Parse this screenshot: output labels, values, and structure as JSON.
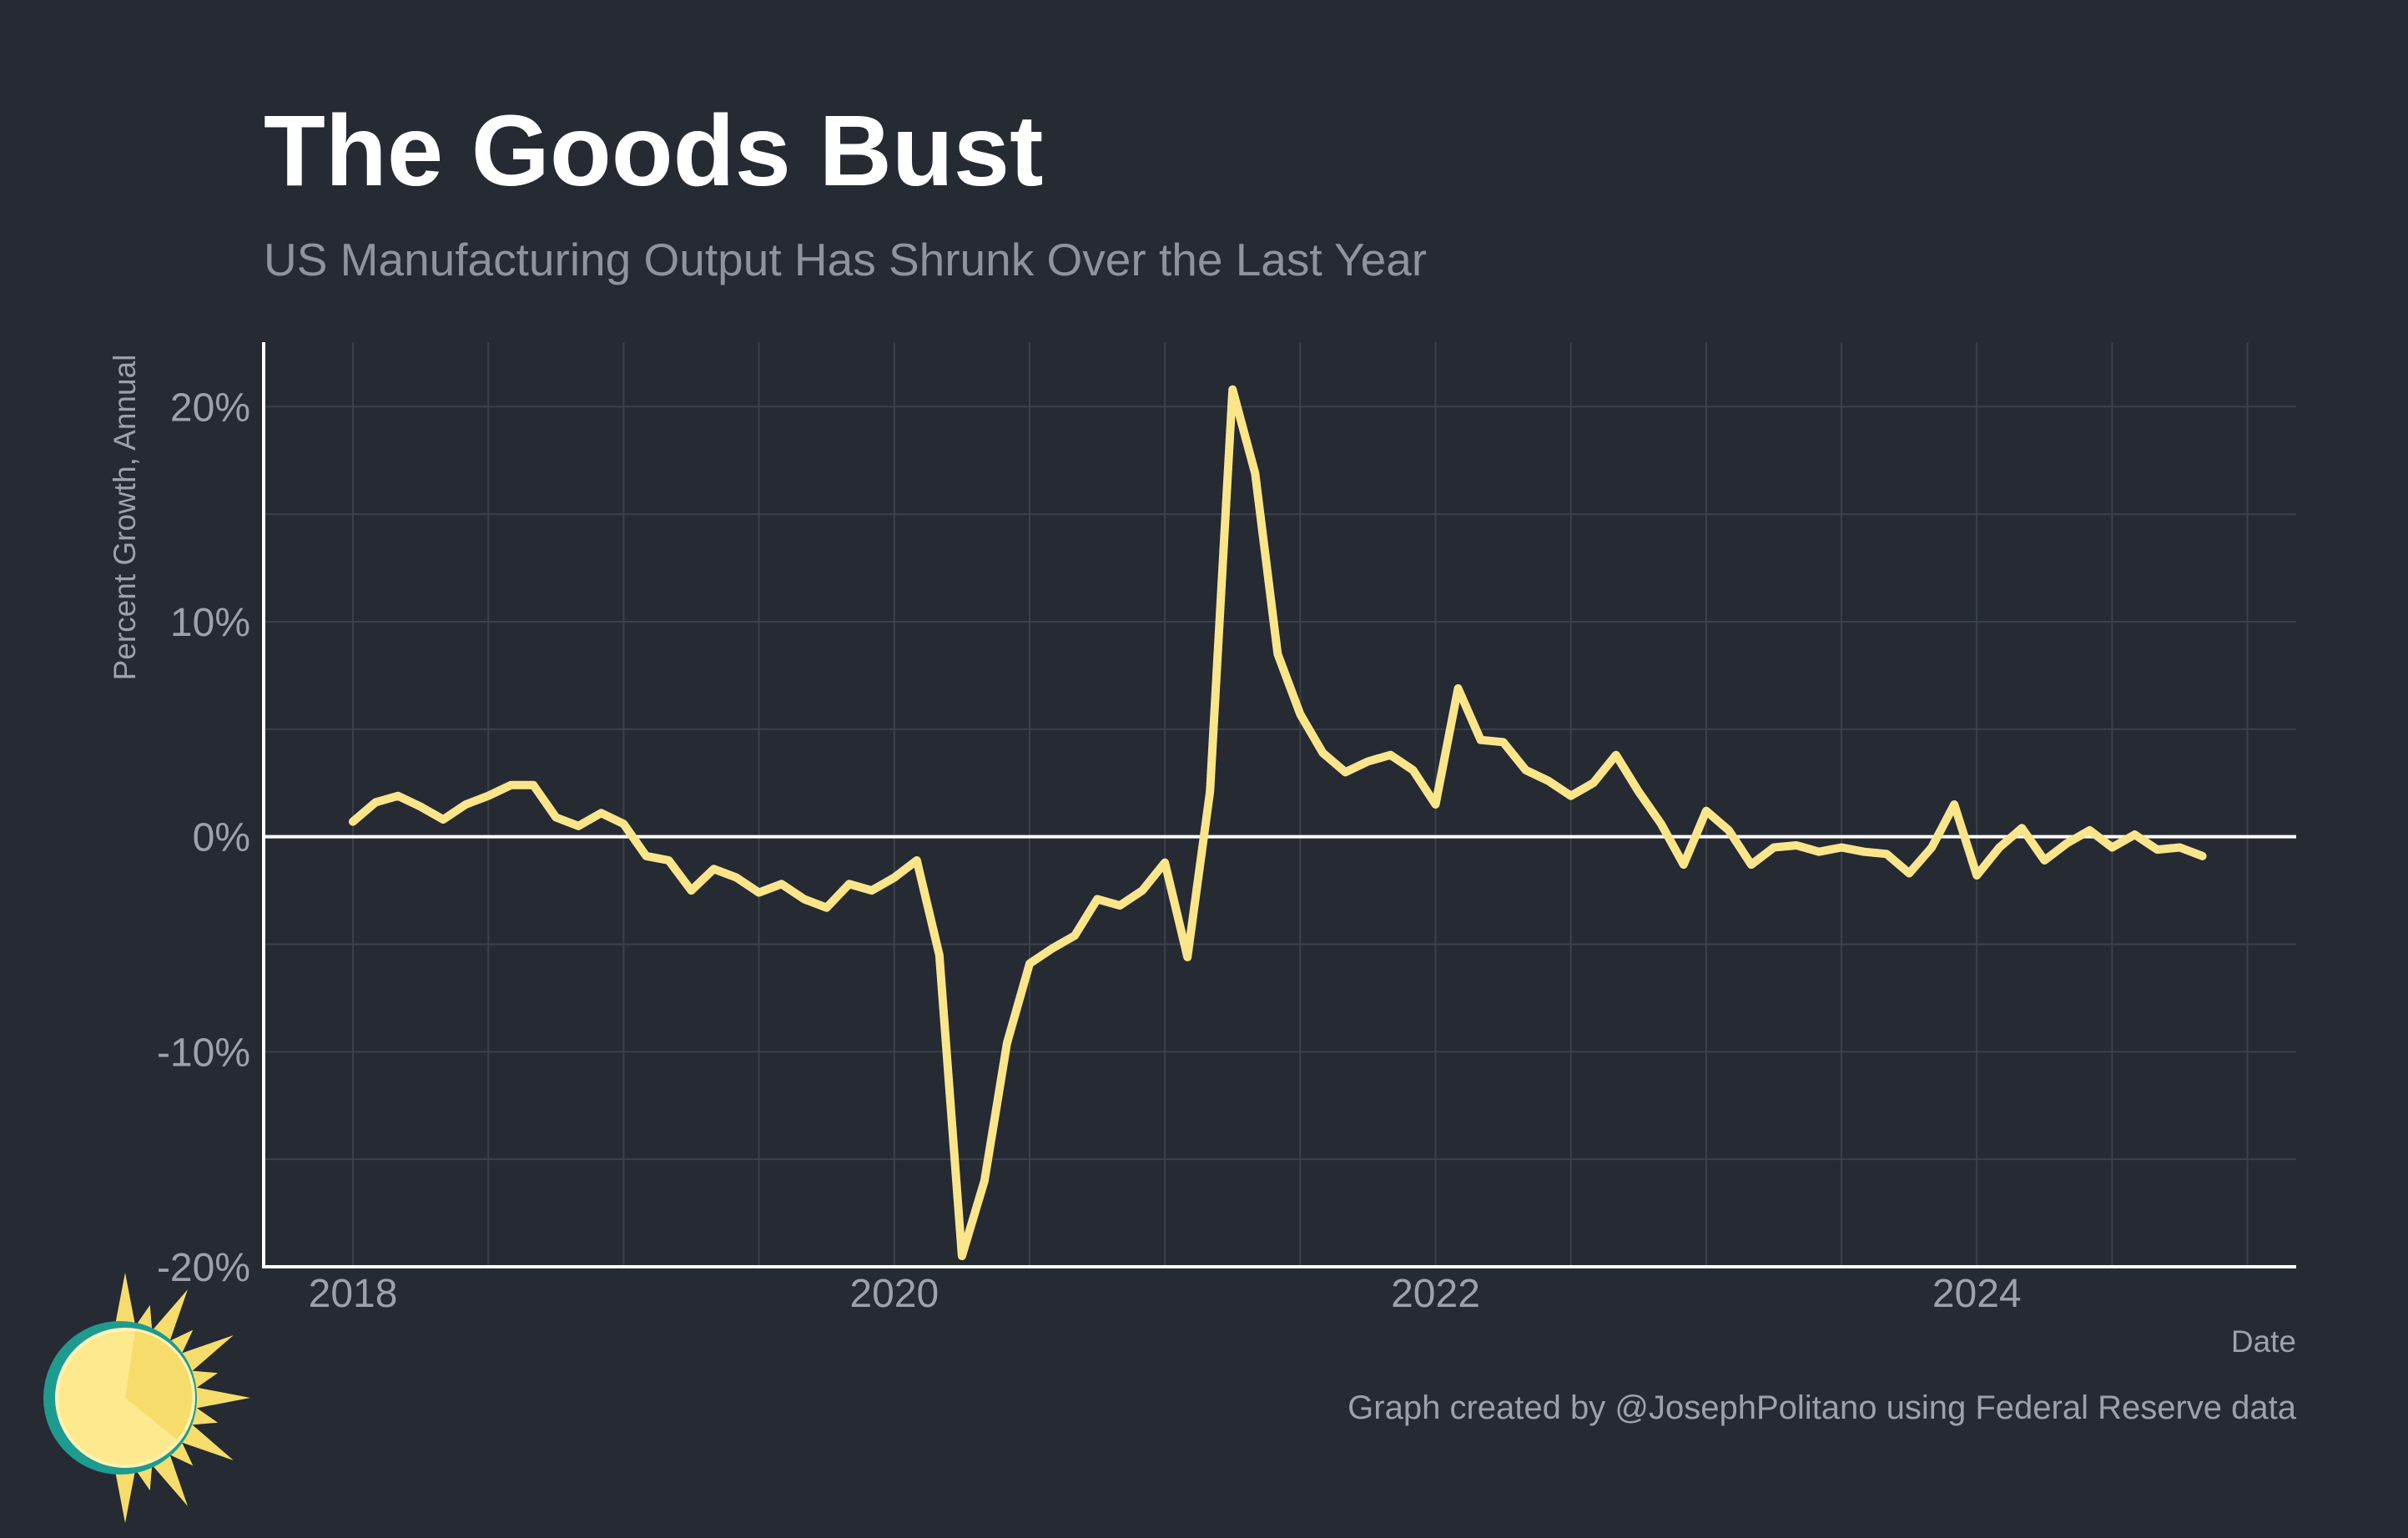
{
  "title": "The Goods Bust",
  "subtitle": "US Manufacturing Output Has Shrunk Over the Last Year",
  "caption": "Graph created by @JosephPolitano using Federal Reserve data",
  "colors": {
    "background": "#252a33",
    "line": "#fbe58a",
    "grid": "#3b414b",
    "zero_line": "#ffffff",
    "axis": "#ffffff",
    "logo_teal": "#1d9b8f",
    "logo_yellow": "#f6dc6b"
  },
  "logo_icon": "sun-logo-icon",
  "chart_data": {
    "type": "line",
    "xlabel": "Date",
    "ylabel": "Percent Growth, Annual",
    "xlim": [
      2017.67,
      2025.18
    ],
    "ylim": [
      -20,
      23
    ],
    "x_ticks": [
      2018,
      2020,
      2022,
      2024
    ],
    "x_tick_labels": [
      "2018",
      "2020",
      "2022",
      "2024"
    ],
    "y_ticks": [
      20,
      10,
      0,
      -10,
      -20
    ],
    "y_tick_labels": [
      "20%",
      "10%",
      "0%",
      "-10%",
      "-20%"
    ],
    "grid": true,
    "zero_line": true,
    "series": [
      {
        "x": [
          "2018-01",
          "2018-02",
          "2018-03",
          "2018-04",
          "2018-05",
          "2018-06",
          "2018-07",
          "2018-08",
          "2018-09",
          "2018-10",
          "2018-11",
          "2018-12",
          "2019-01",
          "2019-02",
          "2019-03",
          "2019-04",
          "2019-05",
          "2019-06",
          "2019-07",
          "2019-08",
          "2019-09",
          "2019-10",
          "2019-11",
          "2019-12",
          "2020-01",
          "2020-02",
          "2020-03",
          "2020-04",
          "2020-05",
          "2020-06",
          "2020-07",
          "2020-08",
          "2020-09",
          "2020-10",
          "2020-11",
          "2020-12",
          "2021-01",
          "2021-02",
          "2021-03",
          "2021-04",
          "2021-05",
          "2021-06",
          "2021-07",
          "2021-08",
          "2021-09",
          "2021-10",
          "2021-11",
          "2021-12",
          "2022-01",
          "2022-02",
          "2022-03",
          "2022-04",
          "2022-05",
          "2022-06",
          "2022-07",
          "2022-08",
          "2022-09",
          "2022-10",
          "2022-11",
          "2022-12",
          "2023-01",
          "2023-02",
          "2023-03",
          "2023-04",
          "2023-05",
          "2023-06",
          "2023-07",
          "2023-08",
          "2023-09",
          "2023-10",
          "2023-11",
          "2023-12",
          "2024-01",
          "2024-02",
          "2024-03",
          "2024-04",
          "2024-05",
          "2024-06",
          "2024-07",
          "2024-08",
          "2024-09",
          "2024-10",
          "2024-11"
        ],
        "y": [
          0.7,
          1.6,
          1.9,
          1.4,
          0.8,
          1.5,
          1.9,
          2.4,
          2.4,
          0.9,
          0.5,
          1.1,
          0.6,
          -0.9,
          -1.1,
          -2.5,
          -1.5,
          -1.9,
          -2.6,
          -2.2,
          -2.9,
          -3.3,
          -2.2,
          -2.5,
          -1.9,
          -1.1,
          -5.5,
          -19.5,
          -16.0,
          -9.6,
          -5.9,
          -5.2,
          -4.6,
          -2.9,
          -3.2,
          -2.5,
          -1.2,
          -5.6,
          2.1,
          20.8,
          16.9,
          8.5,
          5.7,
          3.9,
          3.0,
          3.5,
          3.8,
          3.1,
          1.5,
          6.9,
          4.5,
          4.4,
          3.1,
          2.6,
          1.9,
          2.5,
          3.8,
          2.1,
          0.6,
          -1.3,
          1.2,
          0.3,
          -1.3,
          -0.5,
          -0.4,
          -0.7,
          -0.5,
          -0.7,
          -0.8,
          -1.7,
          -0.5,
          1.5,
          -1.8,
          -0.5,
          0.4,
          -1.1,
          -0.3,
          0.3,
          -0.5,
          0.1,
          -0.6,
          -0.5,
          -0.9
        ]
      }
    ]
  }
}
